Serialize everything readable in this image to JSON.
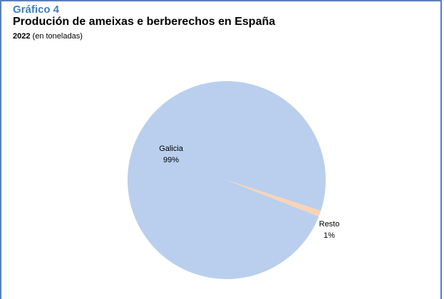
{
  "header": {
    "kicker": "Gráfico 4",
    "title": "Produción de ameixas e berberechos en España",
    "subtitle_year": "2022",
    "subtitle_unit": "(en toneladas)"
  },
  "colors": {
    "accent": "#3f7fc1",
    "frame": "#5b7fb8"
  },
  "chart_data": {
    "type": "pie",
    "title": "Produción de ameixas e berberechos en España",
    "subtitle": "2022 (en toneladas)",
    "unit": "toneladas",
    "slices": [
      {
        "label": "Galicia",
        "percent_label": "99%",
        "value": 99,
        "color": "#b9cfed"
      },
      {
        "label": "Resto",
        "percent_label": "1%",
        "value": 1,
        "color": "#fad3b5"
      }
    ],
    "start_angle_deg": 18,
    "direction": "counterclockwise",
    "legend": "none"
  }
}
